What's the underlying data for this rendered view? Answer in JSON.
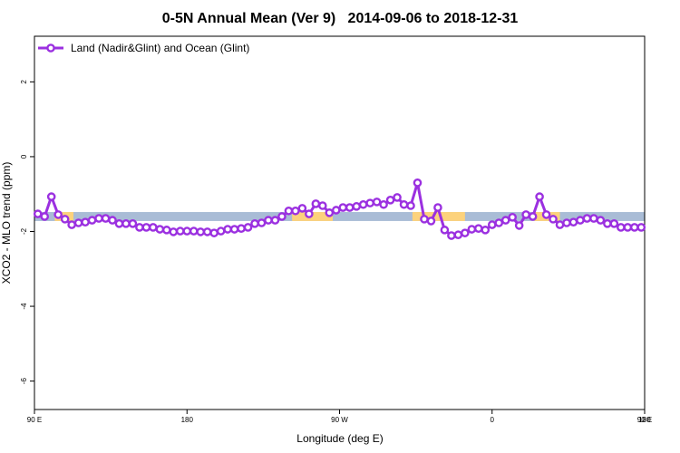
{
  "chart_data": {
    "type": "line",
    "title": "0-5N Annual Mean (Ver 9)   2014-09-06 to 2018-12-31",
    "x_label": "Longitude (deg E)",
    "y_label": "XCO2 - MLO trend (ppm)",
    "xlim": [
      90,
      450
    ],
    "xticks": [
      {
        "value": 90,
        "label": "90 E"
      },
      {
        "value": 180,
        "label": "180"
      },
      {
        "value": 270,
        "label": "90 W"
      },
      {
        "value": 360,
        "label": "0"
      },
      {
        "value": 450,
        "label": "90 E"
      },
      {
        "value": 540,
        "label": "180"
      }
    ],
    "ylim": [
      -6.76,
      3.22
    ],
    "yticks": [
      -6,
      -4,
      -2,
      0,
      2
    ],
    "legend": "top-left",
    "band": {
      "y": [
        -1.72,
        -1.48
      ],
      "color": "#a9bcd6",
      "highlight_color": "#fcd27c",
      "highlights": [
        [
          102,
          113
        ],
        [
          242,
          266
        ],
        [
          313,
          344
        ],
        [
          385,
          400
        ]
      ]
    },
    "x": [
      92,
      96,
      100,
      104,
      108,
      112,
      116,
      120,
      124,
      128,
      132,
      136,
      140,
      144,
      148,
      152,
      156,
      160,
      164,
      168,
      172,
      176,
      180,
      184,
      188,
      192,
      196,
      200,
      204,
      208,
      212,
      216,
      220,
      224,
      228,
      232,
      236,
      240,
      244,
      248,
      252,
      256,
      260,
      264,
      268,
      272,
      276,
      280,
      284,
      288,
      292,
      296,
      300,
      304,
      308,
      312,
      316,
      320,
      324,
      328,
      332,
      336,
      340,
      344,
      348,
      352,
      356,
      360,
      364,
      368,
      372,
      376,
      380,
      384,
      388,
      392,
      396,
      400,
      404,
      408,
      412,
      416,
      420,
      424,
      428,
      432,
      436,
      440,
      444,
      448
    ],
    "series": [
      {
        "name": "Land (Nadir&Glint) and Ocean (Glint)",
        "color": "#9b30e0",
        "values": [
          -1.53,
          -1.6,
          -1.07,
          -1.55,
          -1.67,
          -1.82,
          -1.77,
          -1.75,
          -1.7,
          -1.65,
          -1.65,
          -1.7,
          -1.79,
          -1.79,
          -1.79,
          -1.89,
          -1.89,
          -1.89,
          -1.94,
          -1.96,
          -2.01,
          -1.99,
          -1.99,
          -1.99,
          -2.01,
          -2.01,
          -2.04,
          -1.99,
          -1.94,
          -1.94,
          -1.92,
          -1.89,
          -1.79,
          -1.77,
          -1.7,
          -1.7,
          -1.6,
          -1.45,
          -1.45,
          -1.38,
          -1.53,
          -1.26,
          -1.31,
          -1.5,
          -1.43,
          -1.36,
          -1.36,
          -1.33,
          -1.28,
          -1.24,
          -1.21,
          -1.28,
          -1.16,
          -1.09,
          -1.28,
          -1.31,
          -0.7,
          -1.67,
          -1.72,
          -1.36,
          -1.96,
          -2.11,
          -2.09,
          -2.04,
          -1.94,
          -1.92,
          -1.96,
          -1.82,
          -1.77,
          -1.7,
          -1.62,
          -1.84,
          -1.55,
          -1.6,
          -1.07,
          -1.55,
          -1.67,
          -1.82,
          -1.77,
          -1.75,
          -1.7,
          -1.65,
          -1.65,
          -1.7,
          -1.79,
          -1.79,
          -1.89,
          -1.89,
          -1.89,
          -1.89
        ]
      }
    ]
  }
}
